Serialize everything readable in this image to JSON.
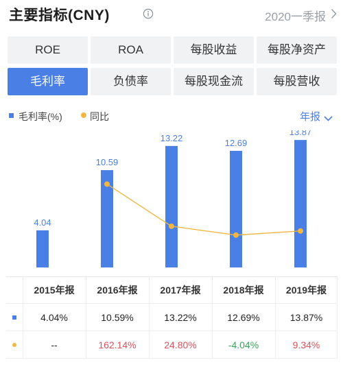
{
  "header": {
    "title": "主要指标(CNY)",
    "period": "2020一季报"
  },
  "tabs": [
    {
      "label": "ROE"
    },
    {
      "label": "ROA"
    },
    {
      "label": "每股收益"
    },
    {
      "label": "每股净资产"
    },
    {
      "label": "毛利率",
      "active": true
    },
    {
      "label": "负债率"
    },
    {
      "label": "每股现金流"
    },
    {
      "label": "每股营收"
    }
  ],
  "legend": {
    "series1": "毛利率(%)",
    "series2": "同比",
    "frequency": "年报"
  },
  "colors": {
    "bar": "#4a7fe6",
    "line": "#f2b742",
    "positive": "#e0505b",
    "negative": "#3aa35a"
  },
  "chart_data": {
    "type": "bar",
    "categories": [
      "2015年报",
      "2016年报",
      "2017年报",
      "2018年报",
      "2019年报"
    ],
    "series": [
      {
        "name": "毛利率(%)",
        "type": "bar",
        "values": [
          4.04,
          10.59,
          13.22,
          12.69,
          13.87
        ]
      },
      {
        "name": "同比",
        "type": "line",
        "values": [
          null,
          162.14,
          24.8,
          -4.04,
          9.34
        ]
      }
    ],
    "value_labels": [
      "4.04",
      "10.59",
      "13.22",
      "12.69",
      "13.87"
    ],
    "grid": false
  },
  "table": {
    "headers": [
      "2015年报",
      "2016年报",
      "2017年报",
      "2018年报",
      "2019年报"
    ],
    "row1": [
      "4.04%",
      "10.59%",
      "13.22%",
      "12.69%",
      "13.87%"
    ],
    "row2": [
      "--",
      "162.14%",
      "24.80%",
      "-4.04%",
      "9.34%"
    ]
  }
}
